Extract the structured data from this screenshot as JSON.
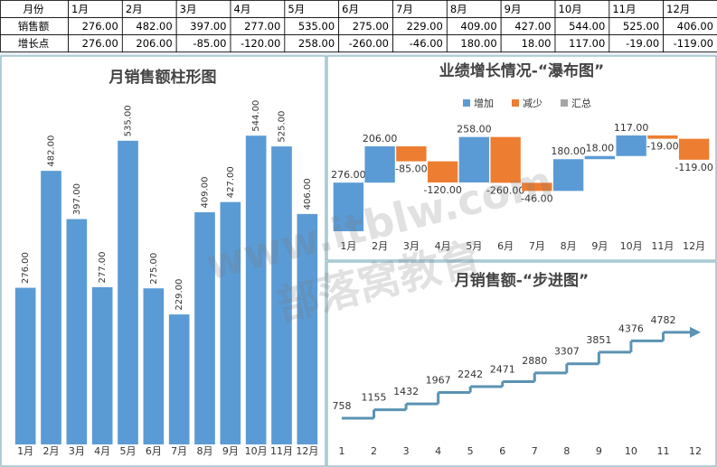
{
  "table": {
    "header": [
      "月份",
      "1月",
      "2月",
      "3月",
      "4月",
      "5月",
      "6月",
      "7月",
      "8月",
      "9月",
      "10月",
      "11月",
      "12月"
    ],
    "rows": [
      [
        "销售额",
        "276.00",
        "482.00",
        "397.00",
        "277.00",
        "535.00",
        "275.00",
        "229.00",
        "409.00",
        "427.00",
        "544.00",
        "525.00",
        "406.00"
      ],
      [
        "增长点",
        "276.00",
        "206.00",
        "-85.00",
        "-120.00",
        "258.00",
        "-260.00",
        "-46.00",
        "180.00",
        "18.00",
        "117.00",
        "-19.00",
        "-119.00"
      ]
    ]
  },
  "watermark": [
    "www.itblw.com",
    "部落窝教育"
  ],
  "chart_data": [
    {
      "type": "bar",
      "title": "月销售额柱形图",
      "categories": [
        "1月",
        "2月",
        "3月",
        "4月",
        "5月",
        "6月",
        "7月",
        "8月",
        "9月",
        "10月",
        "11月",
        "12月"
      ],
      "values": [
        276,
        482,
        397,
        277,
        535,
        275,
        229,
        409,
        427,
        544,
        525,
        406
      ],
      "value_labels": [
        "276.00",
        "482.00",
        "397.00",
        "277.00",
        "535.00",
        "275.00",
        "229.00",
        "409.00",
        "427.00",
        "544.00",
        "525.00",
        "406.00"
      ],
      "color": "#5b9bd5",
      "ylim": [
        0,
        600
      ]
    },
    {
      "type": "waterfall",
      "title": "业绩增长情况-“瀑布图”",
      "categories": [
        "1月",
        "2月",
        "3月",
        "4月",
        "5月",
        "6月",
        "7月",
        "8月",
        "9月",
        "10月",
        "11月",
        "12月"
      ],
      "values": [
        276,
        206,
        -85,
        -120,
        258,
        -260,
        -46,
        180,
        18,
        117,
        -19,
        -119
      ],
      "value_labels": [
        "276.00",
        "206.00",
        "-85.00",
        "-120.00",
        "258.00",
        "-260.00",
        "-46.00",
        "180.00",
        "18.00",
        "117.00",
        "-19.00",
        "-119.00"
      ],
      "legend": [
        {
          "name": "增加",
          "color": "#5b9bd5"
        },
        {
          "name": "减少",
          "color": "#ed7d31"
        },
        {
          "name": "汇总",
          "color": "#a5a5a5"
        }
      ],
      "ylim": [
        0,
        600
      ]
    },
    {
      "type": "step",
      "title": "月销售额-“步进图”",
      "x": [
        1,
        2,
        3,
        4,
        5,
        6,
        7,
        8,
        9,
        10,
        11
      ],
      "values": [
        758,
        1155,
        1432,
        1967,
        2242,
        2471,
        2880,
        3307,
        3851,
        4376,
        4782
      ],
      "color": "#5b93b3",
      "xlim": [
        1,
        12
      ],
      "xticks": [
        1,
        2,
        3,
        4,
        5,
        6,
        7,
        8,
        9,
        10,
        11,
        12
      ],
      "ylim": [
        0,
        6000
      ]
    }
  ]
}
